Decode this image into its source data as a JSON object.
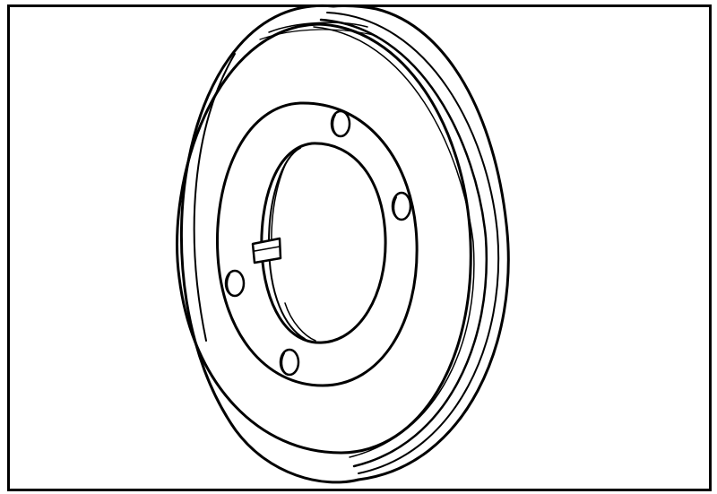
{
  "figure": {
    "subject": "brake-disc",
    "colors": {
      "ink": "#000000",
      "paper": "#ffffff"
    }
  }
}
